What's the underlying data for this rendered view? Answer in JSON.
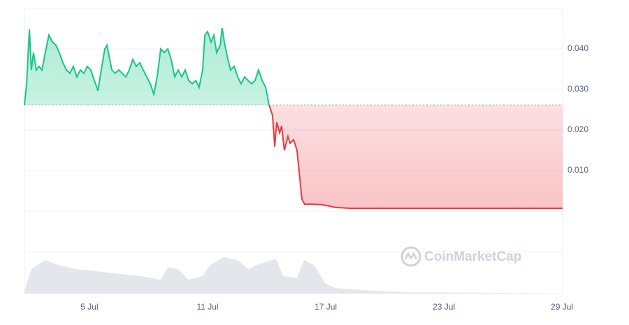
{
  "chart_data": {
    "type": "line",
    "x": [
      1.7,
      1.81,
      1.95,
      2.05,
      2.16,
      2.3,
      2.44,
      2.59,
      2.76,
      2.94,
      3.12,
      3.3,
      3.47,
      3.65,
      3.83,
      4.01,
      4.18,
      4.36,
      4.54,
      4.72,
      4.89,
      5.07,
      5.25,
      5.43,
      5.6,
      5.78,
      5.89,
      6.03,
      6.14,
      6.31,
      6.49,
      6.67,
      6.85,
      7.02,
      7.2,
      7.38,
      7.56,
      7.73,
      7.91,
      8.09,
      8.27,
      8.44,
      8.62,
      8.8,
      8.98,
      9.15,
      9.33,
      9.51,
      9.69,
      9.86,
      10.04,
      10.22,
      10.4,
      10.57,
      10.75,
      10.86,
      11.0,
      11.18,
      11.32,
      11.46,
      11.64,
      11.74,
      11.85,
      11.99,
      12.17,
      12.35,
      12.53,
      12.7,
      12.88,
      13.06,
      13.24,
      13.41,
      13.59,
      13.77,
      13.95,
      14.12,
      14.3,
      14.41,
      14.51,
      14.66,
      14.76,
      14.9,
      15.08,
      15.19,
      15.37,
      15.54,
      15.65,
      15.79,
      15.93,
      16.25,
      16.79,
      17.5,
      18.21,
      19.98,
      21.76,
      25.31,
      29.03
    ],
    "series": [
      {
        "color": "#16c784",
        "color_below": "#ea3943",
        "values": [
          0.0262,
          0.0314,
          0.0448,
          0.0348,
          0.0391,
          0.0348,
          0.0357,
          0.0348,
          0.0391,
          0.0434,
          0.0417,
          0.0409,
          0.0391,
          0.0366,
          0.0348,
          0.034,
          0.0357,
          0.0331,
          0.0348,
          0.034,
          0.0357,
          0.0348,
          0.0322,
          0.0297,
          0.0348,
          0.04,
          0.0409,
          0.0374,
          0.0348,
          0.034,
          0.0348,
          0.034,
          0.0331,
          0.0348,
          0.0374,
          0.0357,
          0.0366,
          0.0348,
          0.0331,
          0.0314,
          0.0288,
          0.0331,
          0.04,
          0.0391,
          0.04,
          0.0374,
          0.0331,
          0.0348,
          0.0331,
          0.0348,
          0.0322,
          0.0314,
          0.0322,
          0.0305,
          0.0348,
          0.0434,
          0.0443,
          0.0417,
          0.0434,
          0.0391,
          0.0409,
          0.0452,
          0.0417,
          0.0383,
          0.0348,
          0.0357,
          0.0331,
          0.0314,
          0.0331,
          0.0322,
          0.0314,
          0.0322,
          0.0348,
          0.0322,
          0.0305,
          0.0262,
          0.0236,
          0.0159,
          0.0219,
          0.0193,
          0.021,
          0.015,
          0.0184,
          0.0167,
          0.0176,
          0.015,
          0.0098,
          0.0029,
          0.0017,
          0.0017,
          0.0016,
          0.0009,
          0.0007,
          0.0007,
          0.0007,
          0.0007,
          0.0007
        ]
      }
    ],
    "baseline": 0.0262,
    "volume": {
      "color": "#e3e7ec",
      "ylim": [
        0,
        100
      ],
      "x": [
        1.7,
        2.05,
        2.76,
        3.47,
        4.36,
        5.43,
        6.49,
        7.56,
        8.62,
        8.98,
        9.51,
        10.04,
        10.75,
        11.11,
        11.82,
        12.53,
        13.06,
        13.59,
        14.48,
        14.83,
        15.54,
        15.9,
        16.43,
        16.96,
        17.5,
        19.27,
        21.05,
        25.31,
        29.03
      ],
      "values": [
        8,
        58,
        80,
        67,
        58,
        53,
        47,
        42,
        33,
        63,
        58,
        33,
        42,
        67,
        87,
        80,
        58,
        70,
        83,
        42,
        37,
        80,
        67,
        25,
        13,
        7,
        3,
        2,
        0
      ]
    },
    "xlim": [
      1.7,
      29.03
    ],
    "xticks": [
      {
        "value": 5,
        "label": "5 Jul"
      },
      {
        "value": 11,
        "label": "11 Jul"
      },
      {
        "value": 17,
        "label": "17 Jul"
      },
      {
        "value": 23,
        "label": "23 Jul"
      },
      {
        "value": 29,
        "label": "29 Jul"
      }
    ],
    "ylim": [
      0,
      0.05
    ],
    "yticks": [
      {
        "value": 0.01,
        "label": "0.010"
      },
      {
        "value": 0.02,
        "label": "0.020"
      },
      {
        "value": 0.03,
        "label": "0.030"
      },
      {
        "value": 0.04,
        "label": "0.040"
      }
    ],
    "grid": true,
    "watermark": "CoinMarketCap"
  }
}
